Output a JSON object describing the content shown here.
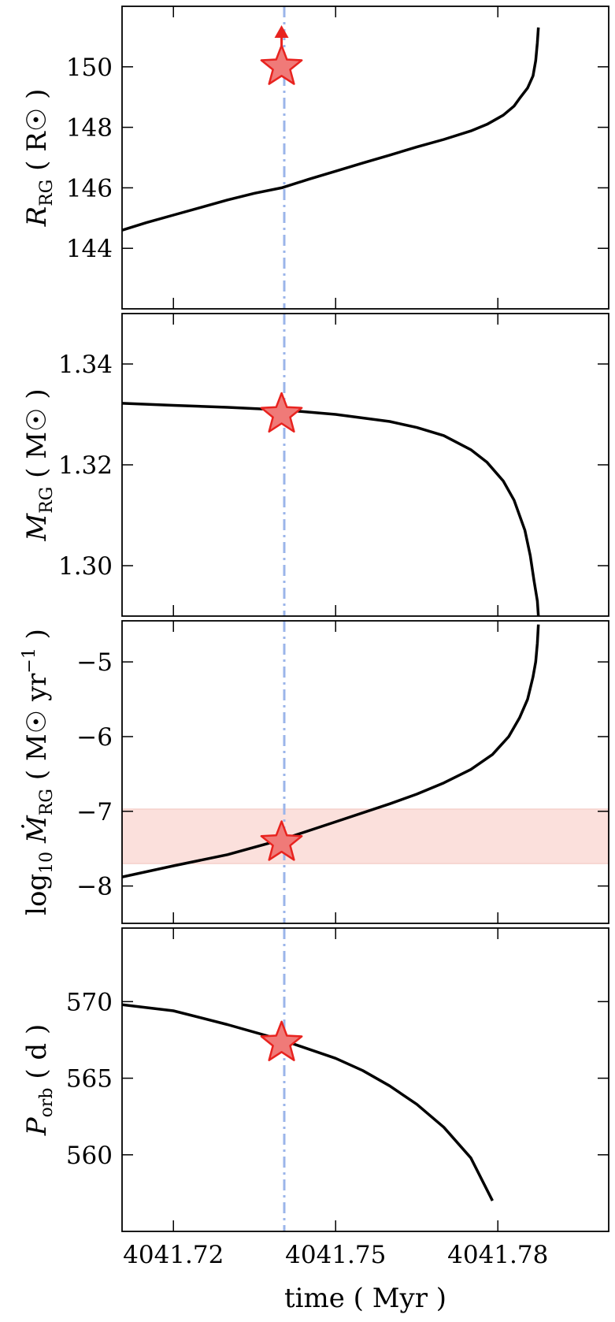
{
  "chart_data": {
    "type": "line",
    "x_tick_labels": [
      "4041.72",
      "4041.75",
      "4041.78"
    ],
    "x_ticks": [
      4041.72,
      4041.75,
      4041.78
    ],
    "xlim": [
      4041.7105,
      4041.8005
    ],
    "xlabel": "time ( Myr )",
    "vertical_line": {
      "x": 4041.7405,
      "color": "#9bb5ea",
      "style": "dash-dot"
    },
    "colors": {
      "curve": "#000000",
      "marker_fill": "#f07a78",
      "marker_edge": "#e8231f",
      "band": "#fbe0dc",
      "vline": "#9bb5ea"
    },
    "panels": [
      {
        "id": "radius",
        "ylabel_main": "R",
        "ylabel_sub": "RG",
        "ylabel_unit": "( R☉ )",
        "ylim": [
          142.0,
          152.0
        ],
        "yticks": [
          144,
          146,
          148,
          150
        ],
        "ytick_labels": [
          "144",
          "146",
          "148",
          "150"
        ],
        "series": {
          "x": [
            4041.7105,
            4041.715,
            4041.72,
            4041.725,
            4041.73,
            4041.735,
            4041.74,
            4041.745,
            4041.75,
            4041.755,
            4041.76,
            4041.765,
            4041.77,
            4041.775,
            4041.778,
            4041.781,
            4041.783,
            4041.784,
            4041.7855,
            4041.7865,
            4041.787,
            4041.7873,
            4041.7875
          ],
          "y": [
            144.6,
            144.85,
            145.1,
            145.35,
            145.6,
            145.82,
            146.0,
            146.28,
            146.55,
            146.82,
            147.08,
            147.35,
            147.6,
            147.88,
            148.1,
            148.4,
            148.7,
            148.95,
            149.3,
            149.7,
            150.2,
            150.8,
            151.3
          ]
        },
        "marker": {
          "x": 4041.74,
          "y": 150.0,
          "arrow": "up"
        }
      },
      {
        "id": "mass",
        "ylabel_main": "M",
        "ylabel_sub": "RG",
        "ylabel_unit": "( M☉ )",
        "ylim": [
          1.29,
          1.35
        ],
        "yticks": [
          1.3,
          1.32,
          1.34
        ],
        "ytick_labels": [
          "1.30",
          "1.32",
          "1.34"
        ],
        "series": {
          "x": [
            4041.7105,
            4041.72,
            4041.73,
            4041.74,
            4041.75,
            4041.76,
            4041.765,
            4041.77,
            4041.775,
            4041.778,
            4041.781,
            4041.783,
            4041.785,
            4041.786,
            4041.7867,
            4041.7873,
            4041.7875
          ],
          "y": [
            1.3322,
            1.3318,
            1.3314,
            1.3309,
            1.33,
            1.3286,
            1.3274,
            1.3258,
            1.323,
            1.3205,
            1.3168,
            1.313,
            1.307,
            1.302,
            1.297,
            1.293,
            1.29
          ]
        },
        "marker": {
          "x": 4041.74,
          "y": 1.33
        }
      },
      {
        "id": "mdot",
        "ylabel_prefix": "log",
        "ylabel_prefix_sub": "10",
        "ylabel_main": "Ṁ",
        "ylabel_sub": "RG",
        "ylabel_unit": "( M☉ yr",
        "ylabel_unit_sup": "−1",
        "ylabel_unit_end": " )",
        "ylim": [
          -8.5,
          -4.45
        ],
        "yticks": [
          -8,
          -7,
          -6,
          -5
        ],
        "ytick_labels": [
          "−8",
          "−7",
          "−6",
          "−5"
        ],
        "band": {
          "ymin": -7.7,
          "ymax": -6.97
        },
        "series": {
          "x": [
            4041.7105,
            4041.72,
            4041.73,
            4041.74,
            4041.75,
            4041.76,
            4041.765,
            4041.77,
            4041.775,
            4041.779,
            4041.782,
            4041.784,
            4041.7855,
            4041.7865,
            4041.787,
            4041.7873,
            4041.7875
          ],
          "y": [
            -7.88,
            -7.73,
            -7.58,
            -7.38,
            -7.14,
            -6.9,
            -6.77,
            -6.62,
            -6.44,
            -6.24,
            -6.0,
            -5.75,
            -5.5,
            -5.2,
            -5.0,
            -4.75,
            -4.5
          ]
        },
        "marker": {
          "x": 4041.74,
          "y": -7.42
        }
      },
      {
        "id": "period",
        "ylabel_main": "P",
        "ylabel_sub": "orb",
        "ylabel_unit": "( d )",
        "ylim": [
          555.0,
          574.8
        ],
        "yticks": [
          560,
          565,
          570
        ],
        "ytick_labels": [
          "560",
          "565",
          "570"
        ],
        "series": {
          "x": [
            4041.7105,
            4041.72,
            4041.73,
            4041.74,
            4041.75,
            4041.755,
            4041.76,
            4041.765,
            4041.77,
            4041.775,
            4041.779
          ],
          "y": [
            569.8,
            569.4,
            568.5,
            567.5,
            566.3,
            565.5,
            564.5,
            563.3,
            561.8,
            559.8,
            557.0
          ]
        },
        "marker": {
          "x": 4041.74,
          "y": 567.3
        }
      }
    ]
  }
}
